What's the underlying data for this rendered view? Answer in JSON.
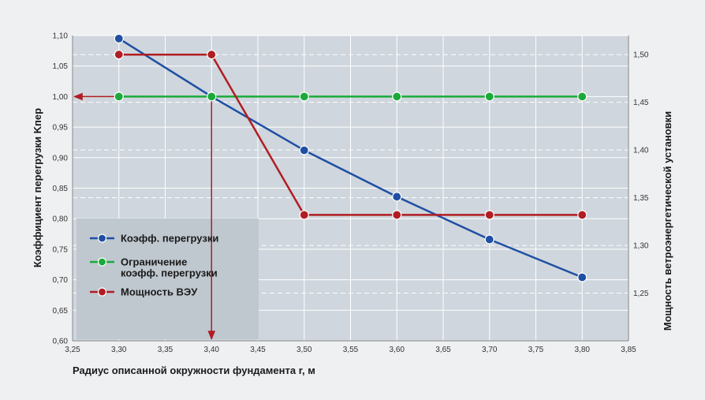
{
  "chart_data": {
    "type": "line",
    "xlabel": "Радиус описанной окружности фундамента r, м",
    "ylabel_left": "Коэффициент перегрузки Kпер",
    "ylabel_right": "Мощность ветроэнергетической установки",
    "xlim": [
      3.25,
      3.85
    ],
    "ylim_left": [
      0.6,
      1.1
    ],
    "ylim_right": [
      1.2,
      1.52
    ],
    "x_ticks": [
      "3,25",
      "3,30",
      "3,35",
      "3,40",
      "3,45",
      "3,50",
      "3,55",
      "3,60",
      "3,65",
      "3,70",
      "3,75",
      "3,80",
      "3,85"
    ],
    "y_left_ticks": [
      "0,60",
      "0,65",
      "0,70",
      "0,75",
      "0,80",
      "0,85",
      "0,90",
      "0,95",
      "1,00",
      "1,05",
      "1,10"
    ],
    "y_right_ticks": [
      "1,25",
      "1,30",
      "1,35",
      "1,40",
      "1,45",
      "1,50"
    ],
    "grid": true,
    "legend_position": "bottom-left",
    "series": [
      {
        "name": "Коэфф. перегрузки",
        "axis": "left",
        "color": "#1f4fa3",
        "x": [
          3.3,
          3.4,
          3.5,
          3.6,
          3.7,
          3.8
        ],
        "y": [
          1.095,
          1.0,
          0.912,
          0.836,
          0.766,
          0.704
        ]
      },
      {
        "name": "Ограничение коэфф. перегрузки",
        "axis": "left",
        "color": "#1aaa3a",
        "x": [
          3.3,
          3.4,
          3.5,
          3.6,
          3.7,
          3.8
        ],
        "y": [
          1.0,
          1.0,
          1.0,
          1.0,
          1.0,
          1.0
        ]
      },
      {
        "name": "Мощность ВЭУ",
        "axis": "right",
        "color": "#b01e23",
        "x": [
          3.3,
          3.4,
          3.5,
          3.6,
          3.7,
          3.8
        ],
        "y": [
          1.5,
          1.5,
          1.332,
          1.332,
          1.332,
          1.332
        ]
      }
    ],
    "annotation_arrows": [
      {
        "from_x": 3.4,
        "to_x": 3.25,
        "at_y_left": 1.0,
        "color": "#b01e23"
      },
      {
        "at_x": 3.4,
        "from_y_left": 1.0,
        "to_y_left": 0.6,
        "color": "#b01e23"
      }
    ],
    "legend": {
      "items": [
        {
          "lines": [
            "Коэфф. перегрузки"
          ],
          "color": "#1f4fa3"
        },
        {
          "lines": [
            "Ограничение",
            "коэфф. перегрузки"
          ],
          "color": "#1aaa3a"
        },
        {
          "lines": [
            "Мощность ВЭУ"
          ],
          "color": "#b01e23"
        }
      ]
    }
  }
}
